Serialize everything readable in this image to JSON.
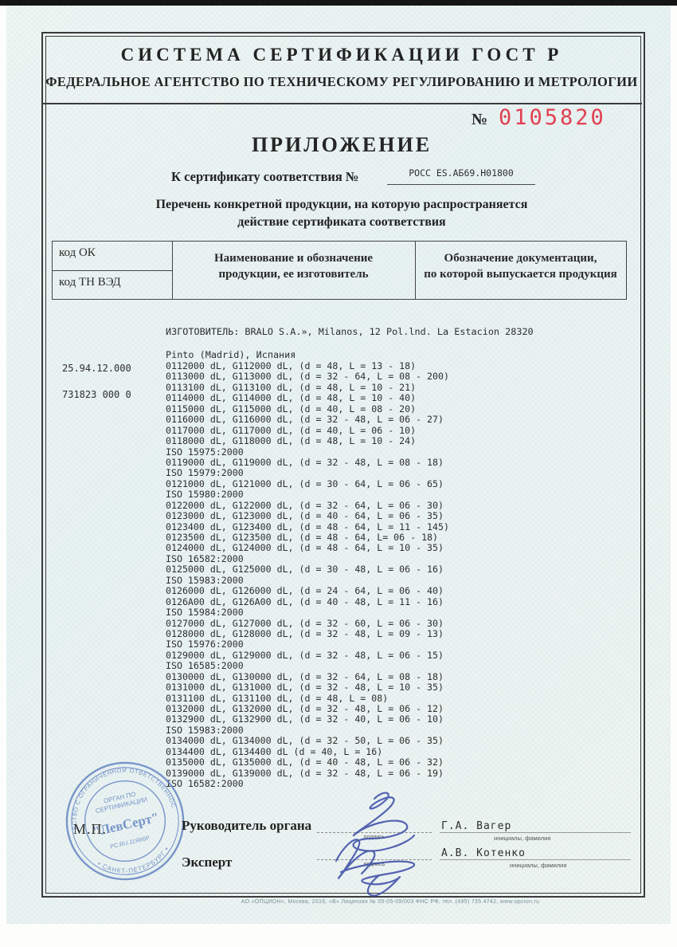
{
  "header": {
    "line1": "СИСТЕМА СЕРТИФИКАЦИИ ГОСТ Р",
    "line2": "ФЕДЕРАЛЬНОЕ АГЕНТСТВО ПО ТЕХНИЧЕСКОМУ РЕГУЛИРОВАНИЮ И МЕТРОЛОГИИ",
    "serial_prefix": "№",
    "serial_number": "0105820",
    "title": "ПРИЛОЖЕНИЕ",
    "cert_line_label": "К сертификату соответствия №",
    "cert_number": "РОСС ES.АБ69.Н01800",
    "subtitle_line1": "Перечень конкретной продукции,  на которую распространяется",
    "subtitle_line2": "действие сертификата соответствия"
  },
  "table": {
    "col_code_ok": "код ОК",
    "col_code_tnved": "код ТН ВЭД",
    "col_product_line1": "Наименование и обозначение",
    "col_product_line2": "продукции, ее изготовитель",
    "col_docs_line1": "Обозначение документации,",
    "col_docs_line2": "по которой выпускается продукция"
  },
  "products": {
    "code_ok": "25.94.12.000",
    "code_tnved": "731823 000 0",
    "manufacturer_line1": "ИЗГОТОВИТЕЛЬ: BRALO S.A.», Milanos, 12 Pol.lnd. La Estacion 28320",
    "manufacturer_line2": "Pinto (Madrid), Испания",
    "lines": [
      "0112000 dL, G112000 dL, (d = 48, L = 13 - 18)",
      "0113000 dL, G113000 dL, (d = 32 - 64, L = 08 - 200)",
      "0113100 dL, G113100 dL, (d = 48, L = 10 - 21)",
      "0114000 dL, G114000 dL, (d = 48, L = 10 - 40)",
      "0115000 dL, G115000 dL, (d = 40, L = 08 - 20)",
      "0116000 dL, G116000 dL, (d = 32 - 48, L = 06 - 27)",
      "0117000 dL, G117000 dL, (d = 40, L = 06 - 10)",
      "0118000 dL, G118000 dL, (d = 48, L = 10 - 24)",
      "ISO 15975:2000",
      "0119000 dL, G119000 dL, (d = 32 - 48, L = 08 - 18)",
      "ISO 15979:2000",
      "0121000 dL, G121000 dL, (d = 30 - 64, L = 06 - 65)",
      "ISO 15980:2000",
      "0122000 dL, G122000 dL, (d = 32 - 64, L = 06 - 30)",
      "0123000 dL, G123000 dL, (d = 40 - 64, L = 06 - 35)",
      "0123400 dL, G123400 dL, (d = 48 - 64, L = 11 - 145)",
      "0123500 dL, G123500 dL, (d = 48 - 64, L= 06 - 18)",
      "0124000 dL, G124000 dL, (d = 48 - 64, L = 10 - 35)",
      "ISO 16582:2000",
      "0125000 dL, G125000 dL, (d = 30 - 48, L = 06 - 16)",
      "ISO 15983:2000",
      "0126000 dL, G126000 dL, (d = 24 - 64, L = 06 - 40)",
      "0126A00 dL, G126A00 dL, (d = 40 - 48, L = 11 - 16)",
      "ISO 15984:2000",
      "0127000 dL, G127000 dL, (d = 32 - 60, L = 06 - 30)",
      "0128000 dL, G128000 dL, (d = 32 - 48, L = 09 - 13)",
      "ISO 15976:2000",
      "0129000 dL, G129000 dL, (d = 32 - 48, L = 06 - 15)",
      "ISO 16585:2000",
      "0130000 dL, G130000 dL, (d = 32 - 64, L = 08 - 18)",
      "0131000 dL, G131000 dL, (d = 32 - 48, L = 10 - 35)",
      "0131100 dL, G131100 dL, (d = 48, L = 08)",
      "0132000 dL, G132000 dL, (d = 32 - 48, L = 06 - 12)",
      "0132900 dL, G132900 dL, (d = 32 - 40, L = 06 - 10)",
      "ISO 15983:2000",
      "0134000 dL, G134000 dL, (d = 32 - 50, L = 06 - 35)",
      "0134400 dL, G134400 dL (d = 40, L = 16)",
      "0135000 dL, G135000 dL, (d = 40 - 48, L = 06 - 32)",
      "0139000 dL, G139000 dL, (d = 32 - 48, L = 06 - 19)",
      "ISO 16582:2000"
    ]
  },
  "stamp": {
    "outer_top": "ОБЩЕСТВО С ОГРАНИЧЕННОЙ ОТВЕТСТВЕННОСТЬЮ",
    "outer_bottom": "• САНКТ-ПЕТЕРБУРГ •",
    "inner_line1": "ОРГАН ПО",
    "inner_line2": "СЕРТИФИКАЦИИ",
    "name": "\"ЛевСерт\"",
    "reg_number": "РС.RU.11ЯК6Р",
    "mp_label": "М.П."
  },
  "signatures": {
    "row1_label": "Руководитель органа",
    "row1_sublabel": "подпись",
    "row1_name": "Г.А. Вагер",
    "row1_name_sublabel": "инициалы, фамилия",
    "row2_label": "Эксперт",
    "row2_sublabel": "подпись",
    "row2_name": "А.В. Котенко",
    "row2_name_sublabel": "инициалы, фамилия"
  },
  "footer": {
    "print_info": "АО «ОПЦИОН», Москва, 2016, «В»     Лицензия № 05-05-09/003 ФНС РФ, тел. (495) 735 4742, www.opcion.ru"
  },
  "colors": {
    "serial_red": "#e04050",
    "stamp_blue": "#5b7fc0",
    "ink_blue": "#3f4fa8"
  }
}
